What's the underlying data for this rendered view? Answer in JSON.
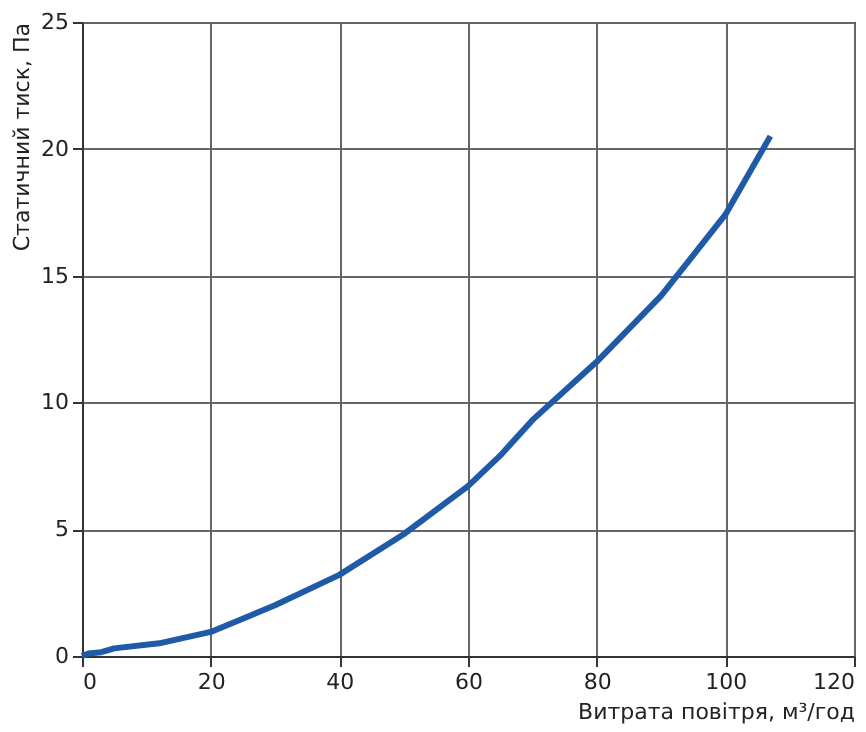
{
  "chart_data": {
    "type": "line",
    "xlabel": "Витрата повітря, м³/год",
    "ylabel": "Статичний тиск, Па",
    "xlim": [
      0,
      120
    ],
    "xticks": [
      0,
      20,
      40,
      60,
      80,
      100,
      120
    ],
    "ylim": [
      0,
      25
    ],
    "yticks": [
      0,
      5,
      10,
      15,
      20,
      25
    ],
    "grid": true,
    "marker": "none",
    "line_style": "solid",
    "series": [
      {
        "color": "#1f5aa6",
        "x": [
          0,
          1,
          3,
          5,
          12,
          20,
          30,
          40,
          50,
          60,
          65,
          70,
          80,
          90,
          100,
          107
        ],
        "values": [
          0,
          0.1,
          0.15,
          0.3,
          0.5,
          0.95,
          2.0,
          3.2,
          4.8,
          6.7,
          7.9,
          9.3,
          11.6,
          14.2,
          17.4,
          20.5
        ]
      }
    ]
  }
}
